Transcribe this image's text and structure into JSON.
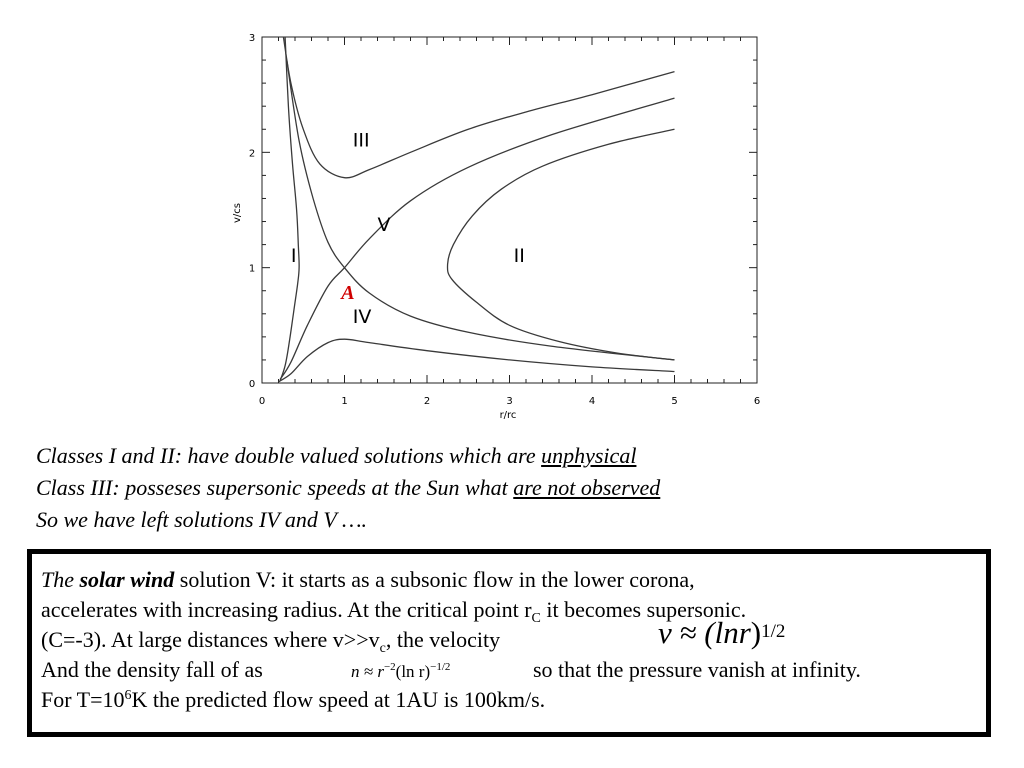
{
  "chart_data": {
    "type": "line",
    "xlabel": "r/rc",
    "ylabel": "v/cs",
    "xlim": [
      0,
      6
    ],
    "ylim": [
      0,
      3
    ],
    "xticks": [
      "0",
      "1",
      "2",
      "3",
      "4",
      "5",
      "6"
    ],
    "yticks": [
      "0",
      "1",
      "2",
      "3"
    ],
    "grid": false,
    "series": [
      {
        "name": "I",
        "points": [
          [
            0.22,
            0.02
          ],
          [
            0.28,
            0.15
          ],
          [
            0.33,
            0.35
          ],
          [
            0.38,
            0.6
          ],
          [
            0.43,
            0.85
          ],
          [
            0.45,
            1.0
          ],
          [
            0.44,
            1.2
          ],
          [
            0.42,
            1.5
          ],
          [
            0.37,
            1.9
          ],
          [
            0.32,
            2.4
          ],
          [
            0.28,
            3.0
          ]
        ]
      },
      {
        "name": "II",
        "points": [
          [
            5.0,
            0.2
          ],
          [
            4.3,
            0.26
          ],
          [
            3.6,
            0.36
          ],
          [
            3.0,
            0.5
          ],
          [
            2.6,
            0.7
          ],
          [
            2.3,
            0.9
          ],
          [
            2.25,
            1.03
          ],
          [
            2.32,
            1.2
          ],
          [
            2.55,
            1.45
          ],
          [
            2.9,
            1.68
          ],
          [
            3.4,
            1.88
          ],
          [
            4.2,
            2.07
          ],
          [
            5.0,
            2.2
          ]
        ]
      },
      {
        "name": "III",
        "points": [
          [
            0.26,
            3.0
          ],
          [
            0.35,
            2.6
          ],
          [
            0.5,
            2.2
          ],
          [
            0.7,
            1.9
          ],
          [
            1.0,
            1.78
          ],
          [
            1.3,
            1.85
          ],
          [
            1.8,
            2.0
          ],
          [
            2.5,
            2.2
          ],
          [
            3.2,
            2.35
          ],
          [
            4.0,
            2.5
          ],
          [
            5.0,
            2.7
          ]
        ]
      },
      {
        "name": "IV",
        "points": [
          [
            0.2,
            0.01
          ],
          [
            0.35,
            0.08
          ],
          [
            0.55,
            0.23
          ],
          [
            0.8,
            0.35
          ],
          [
            1.0,
            0.38
          ],
          [
            1.3,
            0.35
          ],
          [
            2.0,
            0.28
          ],
          [
            3.0,
            0.2
          ],
          [
            4.0,
            0.14
          ],
          [
            5.0,
            0.1
          ]
        ]
      },
      {
        "name": "V",
        "points": [
          [
            0.22,
            0.03
          ],
          [
            0.35,
            0.18
          ],
          [
            0.55,
            0.5
          ],
          [
            0.8,
            0.84
          ],
          [
            1.0,
            1.0
          ],
          [
            1.3,
            1.25
          ],
          [
            1.8,
            1.58
          ],
          [
            2.5,
            1.87
          ],
          [
            3.5,
            2.15
          ],
          [
            5.0,
            2.47
          ]
        ]
      },
      {
        "name": "",
        "points": [
          [
            0.3,
            2.8
          ],
          [
            0.45,
            2.1
          ],
          [
            0.62,
            1.6
          ],
          [
            0.8,
            1.22
          ],
          [
            1.0,
            1.0
          ],
          [
            1.3,
            0.78
          ],
          [
            1.8,
            0.58
          ],
          [
            2.5,
            0.44
          ],
          [
            3.5,
            0.32
          ],
          [
            5.0,
            0.2
          ]
        ]
      }
    ],
    "annotations": [
      {
        "text": "I",
        "x": 0.35,
        "y": 1.05
      },
      {
        "text": "II",
        "x": 3.05,
        "y": 1.05
      },
      {
        "text": "III",
        "x": 1.1,
        "y": 2.05
      },
      {
        "text": "IV",
        "x": 1.1,
        "y": 0.52
      },
      {
        "text": "V",
        "x": 1.4,
        "y": 1.32
      },
      {
        "text": "A",
        "x": 0.96,
        "y": 0.73,
        "color": "#d00000"
      }
    ]
  },
  "notes": {
    "line1_pre": "Classes I and II: have double valued solutions which are ",
    "line1_u": "unphysical",
    "line2_pre": "Class III: posseses supersonic speeds at the Sun what ",
    "line2_u": "are not observed",
    "line3": "So we have left solutions IV and V …."
  },
  "box": {
    "l1_the": "The",
    "l1_solar_wind": "solar wind",
    "l1_rest": " solution V: it starts as a subsonic flow in the lower corona,",
    "l2_pre": "accelerates with increasing radius. At the critical point r",
    "l2_sub": "C",
    "l2_post": " it becomes supersonic.",
    "l3_pre": "(C=-3). At large distances where v>>v",
    "l3_sub": "c",
    "l3_post": ", the velocity",
    "eq1_lhs": "v ≈ (ln",
    "eq1_r": "r",
    "eq1_close": ")",
    "eq1_exp": "1/2",
    "l4_pre": "And the density fall of as",
    "eq2_a": "n ≈ r",
    "eq2_exp1": "−2",
    "eq2_b": "(ln r)",
    "eq2_exp2": "−1/2",
    "l4_post": "so that the pressure vanish at infinity.",
    "l5_pre": "For T=10",
    "l5_sup": "6",
    "l5_post": "K the predicted flow speed at 1AU is 100km/s."
  }
}
